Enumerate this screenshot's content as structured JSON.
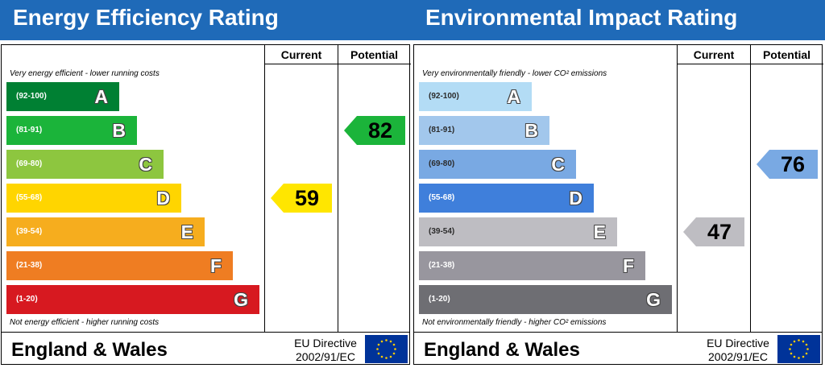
{
  "chart_data": [
    {
      "type": "bar",
      "title": "Energy Efficiency Rating",
      "columns": [
        "Current",
        "Potential"
      ],
      "top_note": "Very energy efficient - lower running costs",
      "bottom_note": "Not energy efficient - higher running costs",
      "bands": [
        {
          "letter": "A",
          "range": "(92-100)",
          "color": "#008033"
        },
        {
          "letter": "B",
          "range": "(81-91)",
          "color": "#1bb43a"
        },
        {
          "letter": "C",
          "range": "(69-80)",
          "color": "#8dc63f"
        },
        {
          "letter": "D",
          "range": "(55-68)",
          "color": "#ffd500"
        },
        {
          "letter": "E",
          "range": "(39-54)",
          "color": "#f6ad1e"
        },
        {
          "letter": "F",
          "range": "(21-38)",
          "color": "#ef7d22"
        },
        {
          "letter": "G",
          "range": "(1-20)",
          "color": "#d71920"
        }
      ],
      "current": {
        "value": "59",
        "band": "D",
        "color": "#ffe600"
      },
      "potential": {
        "value": "82",
        "band": "B",
        "color": "#1bb43a"
      },
      "footer": {
        "country": "England & Wales",
        "directive_line1": "EU Directive",
        "directive_line2": "2002/91/EC"
      }
    },
    {
      "type": "bar",
      "title": "Environmental Impact Rating",
      "columns": [
        "Current",
        "Potential"
      ],
      "top_note": "Very environmentally friendly - lower CO² emissions",
      "bottom_note": "Not environmentally friendly - higher CO² emissions",
      "bands": [
        {
          "letter": "A",
          "range": "(92-100)",
          "color": "#b3dcf5"
        },
        {
          "letter": "B",
          "range": "(81-91)",
          "color": "#a2c7ec"
        },
        {
          "letter": "C",
          "range": "(69-80)",
          "color": "#79a9e3"
        },
        {
          "letter": "D",
          "range": "(55-68)",
          "color": "#3f7fdb"
        },
        {
          "letter": "E",
          "range": "(39-54)",
          "color": "#bebdc2"
        },
        {
          "letter": "F",
          "range": "(21-38)",
          "color": "#98969e"
        },
        {
          "letter": "G",
          "range": "(1-20)",
          "color": "#6e6e73"
        }
      ],
      "current": {
        "value": "47",
        "band": "E",
        "color": "#bebdc2"
      },
      "potential": {
        "value": "76",
        "band": "C",
        "color": "#79a9e3"
      },
      "footer": {
        "country": "England & Wales",
        "directive_line1": "EU Directive",
        "directive_line2": "2002/91/EC"
      }
    }
  ]
}
